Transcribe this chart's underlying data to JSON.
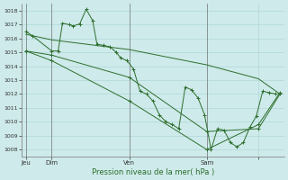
{
  "background_color": "#ceeaea",
  "grid_color": "#b0d8d8",
  "line_color": "#2d6e2d",
  "xlabel": "Pression niveau de la mer( hPa )",
  "ylim": [
    1007.5,
    1018.5
  ],
  "yticks": [
    1008,
    1009,
    1010,
    1011,
    1012,
    1013,
    1014,
    1015,
    1016,
    1017,
    1018
  ],
  "day_tick_positions": [
    0,
    12,
    48,
    84,
    108
  ],
  "day_labels": [
    "Jeu",
    "Dim",
    "Ven",
    "Sam"
  ],
  "xlim": [
    -2,
    120
  ],
  "s1x": [
    0,
    3,
    12,
    15,
    17,
    20,
    22,
    25,
    28,
    31,
    33,
    36,
    39,
    42,
    44,
    47,
    50,
    53,
    56,
    59,
    62,
    65,
    68,
    71,
    74,
    77,
    80,
    83,
    86,
    89,
    92,
    95,
    98,
    101,
    104,
    107,
    110,
    113,
    116
  ],
  "s1y": [
    1016.5,
    1016.2,
    1015.1,
    1015.1,
    1017.1,
    1017.0,
    1016.9,
    1017.05,
    1018.1,
    1017.3,
    1015.6,
    1015.5,
    1015.4,
    1015.0,
    1014.6,
    1014.4,
    1013.8,
    1012.2,
    1012.0,
    1011.5,
    1010.5,
    1010.0,
    1009.8,
    1009.5,
    1012.5,
    1012.3,
    1011.7,
    1010.5,
    1008.0,
    1009.5,
    1009.4,
    1008.5,
    1008.2,
    1008.5,
    1009.6,
    1010.4,
    1012.2,
    1012.1,
    1012.0
  ],
  "s2x": [
    0,
    12,
    48,
    84,
    108,
    118
  ],
  "s2y": [
    1016.3,
    1015.9,
    1015.2,
    1014.1,
    1013.1,
    1012.0
  ],
  "s3x": [
    0,
    12,
    48,
    84,
    108,
    118
  ],
  "s3y": [
    1015.1,
    1014.8,
    1013.2,
    1009.3,
    1009.5,
    1012.0
  ],
  "s4x": [
    0,
    12,
    48,
    84,
    108,
    118
  ],
  "s4y": [
    1015.1,
    1014.4,
    1011.5,
    1008.0,
    1009.8,
    1012.1
  ]
}
